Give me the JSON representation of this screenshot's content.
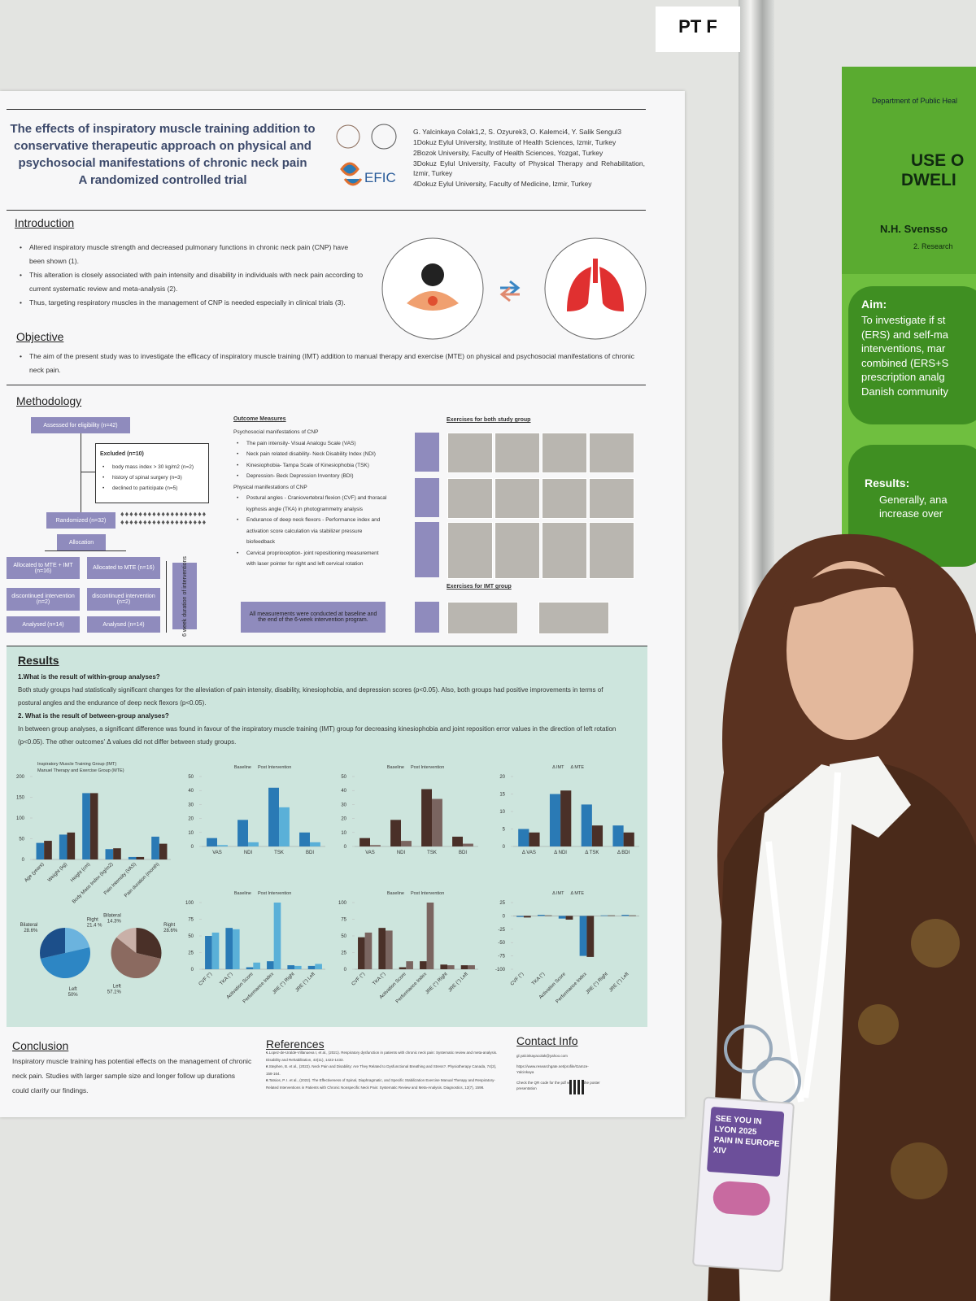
{
  "sign": "PT F",
  "poster": {
    "title": [
      "The effects of inspiratory muscle training addition to",
      "conservative therapeutic approach on physical and",
      "psychosocial manifestations of chronic neck pain",
      "A randomized controlled trial"
    ],
    "logo": "EFIC",
    "authors": "G. Yalcinkaya Colak1,2, S. Ozyurek3, O. Kalemci4, Y. Salik Sengul3",
    "affiliations": [
      "1Dokuz Eylul University, Institute of Health Sciences, Izmir, Turkey",
      "2Bozok University, Faculty of Health Sciences, Yozgat, Turkey",
      "3Dokuz Eylul University, Faculty of Physical Therapy and Rehabilitation, Izmir, Turkey",
      "4Dokuz Eylul University, Faculty of Medicine, Izmir, Turkey"
    ],
    "introduction": {
      "heading": "Introduction",
      "bullets": [
        "Altered inspiratory muscle strength and decreased pulmonary functions in chronic neck pain (CNP) have been shown (1).",
        "This alteration is closely associated with pain intensity and disability in individuals with neck pain according to current systematic review and meta-analysis (2).",
        "Thus, targeting respiratory muscles in the management of CNP is needed especially in clinical trials (3)."
      ]
    },
    "objective": {
      "heading": "Objective",
      "bullets": [
        "The aim of the present study was to investigate the efficacy of inspiratory muscle training (IMT) addition to manual therapy and exercise (MTE) on physical and psychosocial manifestations of chronic neck pain."
      ]
    },
    "methodology": {
      "heading": "Methodology",
      "flow": {
        "assessed": "Assessed for eligibility (n=42)",
        "excluded": "Excluded (n=10)",
        "exclusions": [
          "body mass index > 30 kg/m2 (n=2)",
          "history of spinal surgery (n=3)",
          "declined to participate (n=5)"
        ],
        "randomized": "Randomized (n=32)",
        "allocation": "Allocation",
        "arms": [
          {
            "allocated": "Allocated to MTE + IMT (n=16)",
            "discontinued": "discontinued intervention (n=2)",
            "analysed": "Analysed (n=14)"
          },
          {
            "allocated": "Allocated to MTE (n=16)",
            "discontinued": "discontinued intervention (n=2)",
            "analysed": "Analysed (n=14)"
          }
        ],
        "duration": "6 week duration of interventions"
      },
      "outcomes": {
        "heading": "Outcome Measures",
        "groups": [
          {
            "title": "Psychosocial manifestations of CNP",
            "items": [
              "The pain intensity- Visual Analogu Scale (VAS)",
              "Neck pain related disability- Neck Disability Index (NDI)",
              "Kinesiophobia- Tampa Scale of Kinesiophobia (TSK)",
              "Depression- Beck Depression Inventory (BDI)"
            ]
          },
          {
            "title": "Physical manifestations of CNP",
            "items": [
              "Postural angles - Craniovertebral flexion (CVF) and thoracal kyphosis angle (TKA) in photogrammetry analysis",
              "Endurance of deep neck flexors - Performance index and activation score calculation via stabilizer pressure biofeedback",
              "Cervical proprioception- joint repositioning measurement with laser pointer for right and left cervical rotation"
            ]
          }
        ],
        "note": "All measurements were conducted at baseline and the end of the 6-week intervention program."
      },
      "exercises": {
        "both": "Exercises for both study group",
        "imt": "Exercises for IMT group"
      }
    },
    "results": {
      "heading": "Results",
      "questions": [
        {
          "q": "1.What is the result of within-group analyses?",
          "a": "Both study groups had statistically significant changes for the alleviation of pain intensity, disability, kinesiophobia, and depression scores (p<0.05). Also, both groups had positive improvements in terms of postural angles and the endurance of deep neck flexors (p<0.05)."
        },
        {
          "q": "2. What is the result of between-group analyses?",
          "a": "In between group analyses, a significant difference was found in favour of the inspiratory muscle training (IMT) group for decreasing kinesiophobia and joint reposition error values in the direction of left rotation (p<0.05). The other outcomes' Δ values did not differ between study groups."
        }
      ]
    },
    "conclusion": {
      "heading": "Conclusion",
      "text": "Inspiratory muscle training has potential effects on the management of chronic neck pain. Studies with larger sample size and longer follow up durations could clarify our findings."
    },
    "references": {
      "heading": "References",
      "items": [
        "1.Lopez-de-Uralde-Villanueva I, et al., (2021). Respiratory dysfunction in patients with chronic neck pain: Systematic review and meta-analysis. Disability and Rehabilitation, 43(11), 1422-1433.",
        "2.Stephen, B. et al., (2022). Neck Pain and Disability: Are They Related to Dysfunctional Breathing and Stress?. Physiotherapy Canada, 74(2), 158-164.",
        "3.Tatsios, P. I. et al., (2022). The Effectiveness of Spinal, Diaphragmatic, and Specific Stabilization Exercise Manual Therapy and Respiratory-Related Interventions in Patients with Chronic Nonspecific Neck Pain: Systematic Review and Meta-Analysis. Diagnostics, 12(7), 1598."
      ]
    },
    "contact": {
      "heading": "Contact Info",
      "items": [
        "gl.yalcinkayacolak@yahoo.com",
        "https://www.researchgate.net/profile/Gamze-Yalcinkaya",
        "Check the QR code for the pdf version of the poster presentation"
      ]
    }
  },
  "chart_data": [
    {
      "type": "bar",
      "categories": [
        "Age (years)",
        "Weight (kg)",
        "Height (cm)",
        "Body Mass Index (kg/m2)",
        "Pain Intensity (VAS)",
        "Pain duration (month)"
      ],
      "series": [
        {
          "name": "Inspiratory Muscle Training Group (IMT)",
          "color": "#2a7ab5",
          "values": [
            40,
            60,
            160,
            25,
            6,
            55
          ]
        },
        {
          "name": "Manuel Therapy and Exercise Group (MTE)",
          "color": "#4a3028",
          "values": [
            45,
            65,
            160,
            27,
            6,
            38
          ]
        }
      ],
      "ylim": [
        0,
        200
      ],
      "yticks": [
        0,
        50,
        100,
        150,
        200
      ]
    },
    {
      "type": "bar",
      "categories": [
        "VAS",
        "NDI",
        "TSK",
        "BDI"
      ],
      "series": [
        {
          "name": "Baseline",
          "color": "#2a7ab5",
          "values": [
            6,
            19,
            42,
            10
          ]
        },
        {
          "name": "Post Intervention",
          "color": "#5ab0d8",
          "values": [
            1,
            3,
            28,
            3
          ]
        }
      ],
      "ylim": [
        0,
        50
      ],
      "yticks": [
        0,
        10,
        20,
        30,
        40,
        50
      ]
    },
    {
      "type": "bar",
      "categories": [
        "VAS",
        "NDI",
        "TSK",
        "BDI"
      ],
      "series": [
        {
          "name": "Baseline",
          "color": "#4a3028",
          "values": [
            6,
            19,
            41,
            7
          ]
        },
        {
          "name": "Post Intervention",
          "color": "#7a6560",
          "values": [
            1,
            4,
            34,
            2
          ]
        }
      ],
      "ylim": [
        0,
        50
      ],
      "yticks": [
        0,
        10,
        20,
        30,
        40,
        50
      ]
    },
    {
      "type": "bar",
      "categories": [
        "Δ VAS",
        "Δ NDI",
        "Δ TSK",
        "Δ BDI"
      ],
      "series": [
        {
          "name": "Δ IMT",
          "color": "#2a7ab5",
          "values": [
            5,
            15,
            12,
            6
          ]
        },
        {
          "name": "Δ MTE",
          "color": "#4a3028",
          "values": [
            4,
            16,
            6,
            4
          ]
        }
      ],
      "ylim": [
        0,
        20
      ],
      "yticks": [
        0,
        5,
        10,
        15,
        20
      ]
    },
    {
      "type": "pie",
      "categories": [
        "Right",
        "Left",
        "Bilateral"
      ],
      "values": [
        21.4,
        50,
        28.6
      ],
      "value_labels": [
        "21.4 %",
        "50%",
        "28.6%"
      ],
      "colors": [
        "#6bb3de",
        "#2d86c4",
        "#1c4f8a"
      ]
    },
    {
      "type": "pie",
      "categories": [
        "Right",
        "Left",
        "Bilateral"
      ],
      "values": [
        28.6,
        57.1,
        14.3
      ],
      "value_labels": [
        "28.6%",
        "57.1%",
        "14.3%"
      ],
      "colors": [
        "#4a3028",
        "#8b6a60",
        "#c9b0a8"
      ]
    },
    {
      "type": "bar",
      "categories": [
        "CVF (°)",
        "TKA (°)",
        "Activation Score",
        "Performance Index",
        "JRE (°) Right",
        "JRE (°) Left"
      ],
      "series": [
        {
          "name": "Baseline",
          "color": "#2a7ab5",
          "values": [
            50,
            62,
            3,
            12,
            6,
            5
          ]
        },
        {
          "name": "Post Intervention",
          "color": "#5ab0d8",
          "values": [
            55,
            60,
            10,
            100,
            5,
            8
          ]
        }
      ],
      "ylim": [
        0,
        100
      ],
      "yticks": [
        0,
        25,
        50,
        75,
        100
      ]
    },
    {
      "type": "bar",
      "categories": [
        "CVF (°)",
        "TKA (°)",
        "Activation Score",
        "Performance Index",
        "JRE (°) Right",
        "JRE (°) Left"
      ],
      "series": [
        {
          "name": "Baseline",
          "color": "#4a3028",
          "values": [
            48,
            62,
            3,
            12,
            7,
            6
          ]
        },
        {
          "name": "Post Intervention",
          "color": "#7a6560",
          "values": [
            55,
            58,
            12,
            100,
            6,
            6
          ]
        }
      ],
      "ylim": [
        0,
        100
      ],
      "yticks": [
        0,
        25,
        50,
        75,
        100
      ]
    },
    {
      "type": "bar",
      "categories": [
        "CVF (°)",
        "TKA (°)",
        "Activation Score",
        "Performance Index",
        "JRE (°) Right",
        "JRE (°) Left"
      ],
      "series": [
        {
          "name": "Δ IMT",
          "color": "#2a7ab5",
          "values": [
            -2,
            2,
            -5,
            -75,
            1,
            2
          ]
        },
        {
          "name": "Δ MTE",
          "color": "#4a3028",
          "values": [
            -3,
            1,
            -7,
            -77,
            1,
            1
          ]
        }
      ],
      "ylim": [
        -100,
        25
      ],
      "yticks": [
        25,
        0,
        -25,
        -50,
        -75,
        -100
      ]
    }
  ],
  "neighbor_poster": {
    "department": "Department of Public Heal",
    "title": [
      "USE O",
      "DWELI"
    ],
    "author": "N.H. Svensso",
    "affiliation": "2. Research",
    "aim_heading": "Aim:",
    "aim_lines": [
      "To investigate if st",
      "(ERS) and self-ma",
      "interventions, mar",
      "combined (ERS+S",
      "prescription analg",
      "Danish community"
    ],
    "results_heading": "Results:",
    "results_lines": [
      "Generally, ana",
      "increase over"
    ]
  },
  "badge": {
    "lines": [
      "SEE YOU IN",
      "LYON 2025",
      "PAIN IN EUROPE XIV"
    ]
  }
}
